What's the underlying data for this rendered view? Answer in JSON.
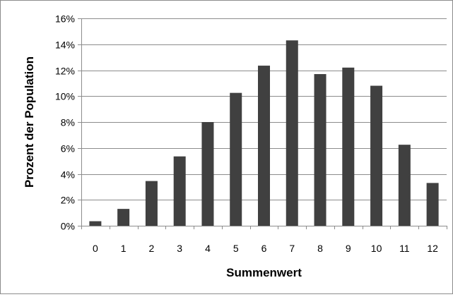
{
  "chart_data": {
    "type": "bar",
    "categories": [
      "0",
      "1",
      "2",
      "3",
      "4",
      "5",
      "6",
      "7",
      "8",
      "9",
      "10",
      "11",
      "12"
    ],
    "values": [
      0.35,
      1.3,
      3.45,
      5.35,
      8.0,
      10.25,
      12.35,
      14.3,
      11.7,
      12.2,
      10.8,
      6.25,
      3.3
    ],
    "title": "",
    "xlabel": "Summenwert",
    "ylabel": "Prozent der Population",
    "ylim": [
      0,
      16
    ],
    "yticks": [
      0,
      2,
      4,
      6,
      8,
      10,
      12,
      14,
      16
    ],
    "ytick_labels": [
      "0%",
      "2%",
      "4%",
      "6%",
      "8%",
      "10%",
      "12%",
      "14%",
      "16%"
    ],
    "grid": true,
    "legend": "none",
    "bar_color": "#404040"
  }
}
